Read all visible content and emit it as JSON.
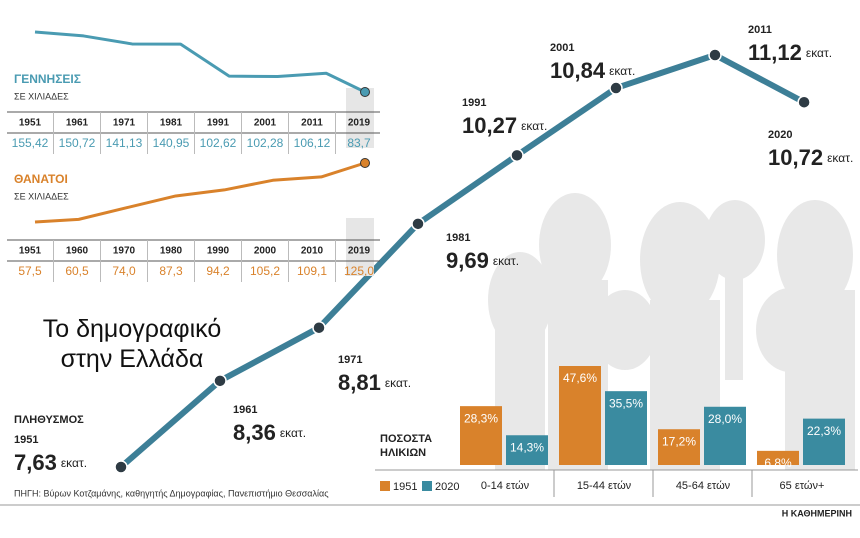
{
  "title": "Το δημογραφικό στην Ελλάδα",
  "source": "ΠΗΓΗ: Βύρων Κοτζαμάνης, καθηγητής Δημογραφίας, Πανεπιστήμιο Θεσσαλίας",
  "publisher": "Η ΚΑΘΗΜΕΡΙΝΗ",
  "chart_data": [
    {
      "type": "line",
      "title": "ΠΛΗΘΥΣΜΟΣ",
      "unit": "εκατ.",
      "x": [
        1951,
        1961,
        1971,
        1981,
        1991,
        2001,
        2011,
        2020
      ],
      "values": [
        7.63,
        8.36,
        8.81,
        9.69,
        10.27,
        10.84,
        11.12,
        10.72
      ],
      "value_labels": [
        "7,63",
        "8,36",
        "8,81",
        "9,69",
        "10,27",
        "10,84",
        "11,12",
        "10,72"
      ],
      "color": "#3d7f97"
    },
    {
      "type": "sparkline",
      "title": "ΓΕΝΝΗΣΕΙΣ",
      "subtitle": "ΣΕ ΧΙΛΙΑΔΕΣ",
      "x": [
        1951,
        1961,
        1971,
        1981,
        1991,
        2001,
        2011,
        2019
      ],
      "values": [
        155.42,
        150.72,
        141.13,
        140.95,
        102.62,
        102.28,
        106.12,
        83.7
      ],
      "value_labels": [
        "155,42",
        "150,72",
        "141,13",
        "140,95",
        "102,62",
        "102,28",
        "106,12",
        "83,7"
      ],
      "color": "#4a9bb2"
    },
    {
      "type": "sparkline",
      "title": "ΘΑΝΑΤΟΙ",
      "subtitle": "ΣΕ ΧΙΛΙΑΔΕΣ",
      "x": [
        1951,
        1960,
        1970,
        1980,
        1990,
        2000,
        2010,
        2019
      ],
      "values": [
        57.5,
        60.5,
        74.0,
        87.3,
        94.2,
        105.2,
        109.1,
        125.0
      ],
      "value_labels": [
        "57,5",
        "60,5",
        "74,0",
        "87,3",
        "94,2",
        "105,2",
        "109,1",
        "125,0"
      ],
      "color": "#d9822b"
    },
    {
      "type": "bar",
      "title": "ΠΟΣΟΣΤΑ ΗΛΙΚΙΩΝ",
      "categories": [
        "0-14 ετών",
        "15-44 ετών",
        "45-64 ετών",
        "65 ετών+"
      ],
      "series": [
        {
          "name": "1951",
          "color": "#d9822b",
          "values": [
            28.3,
            47.6,
            17.2,
            6.8
          ],
          "value_labels": [
            "28,3%",
            "47,6%",
            "17,2%",
            "6,8%"
          ]
        },
        {
          "name": "2020",
          "color": "#3a8ba0",
          "values": [
            14.3,
            35.5,
            28.0,
            22.3
          ],
          "value_labels": [
            "14,3%",
            "35,5%",
            "28,0%",
            "22,3%"
          ]
        }
      ]
    }
  ]
}
